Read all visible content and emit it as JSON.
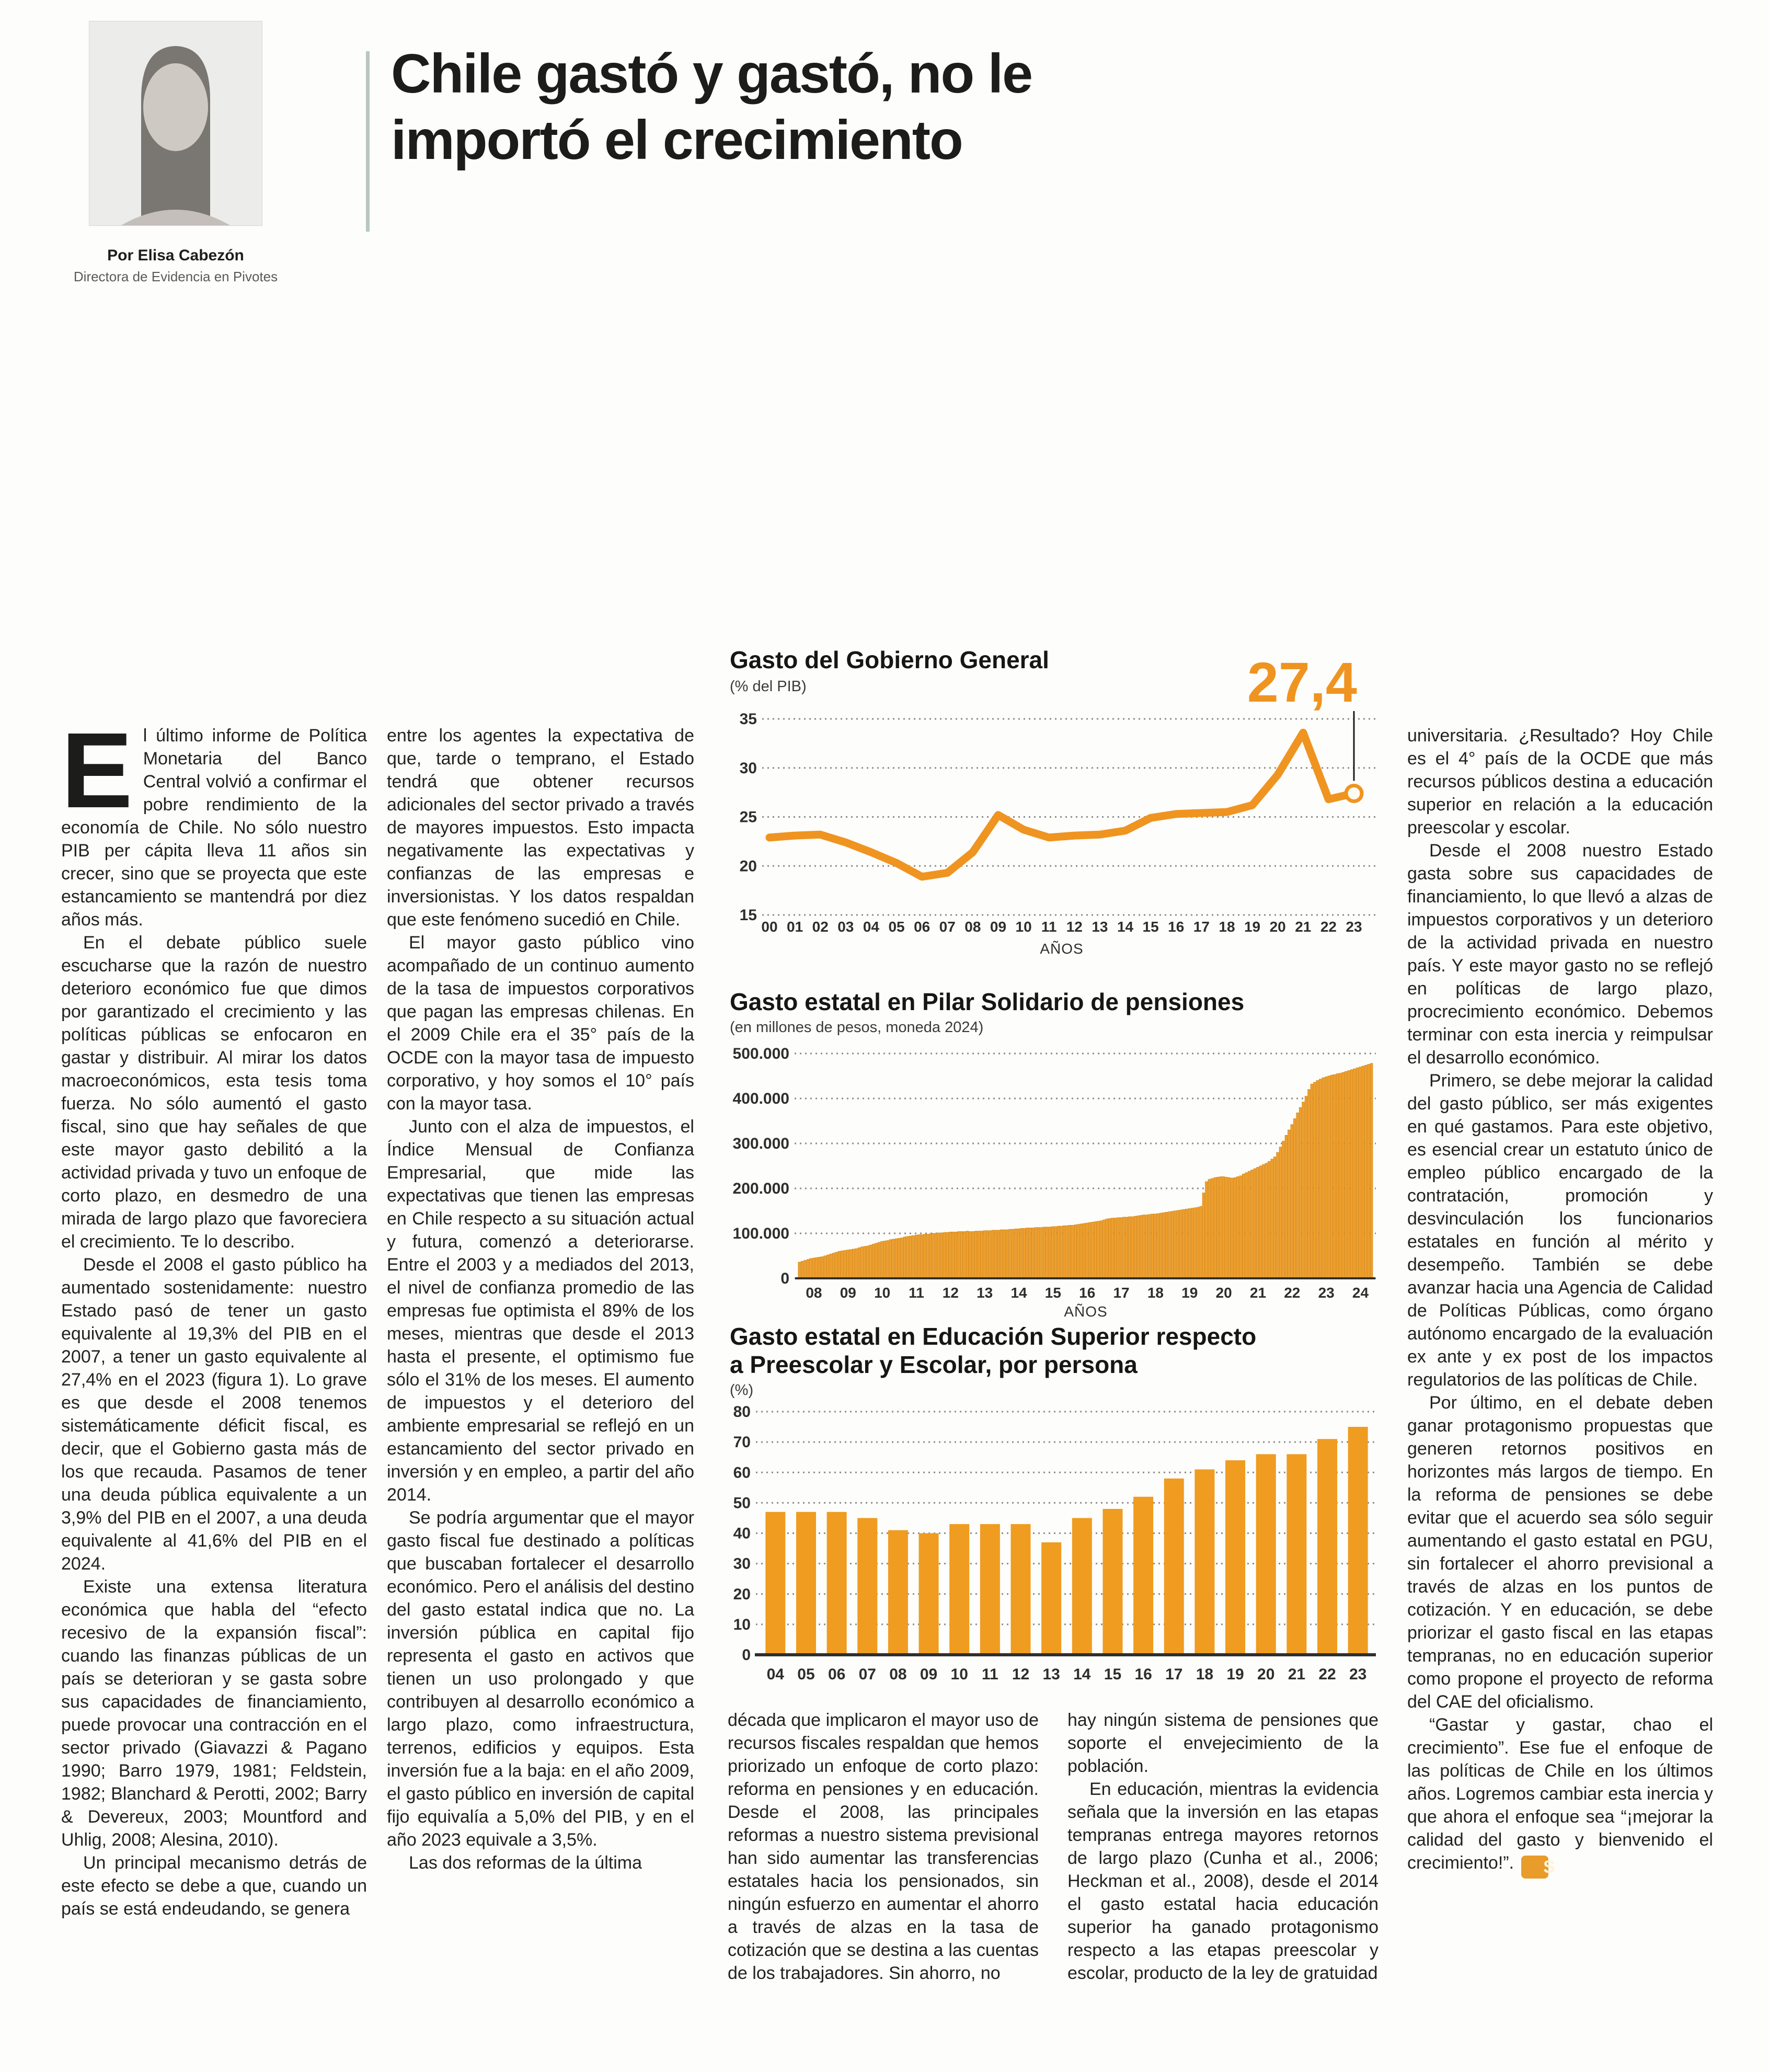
{
  "header": {
    "byline": "Por Elisa Cabezón",
    "byline_role": "Directora de Evidencia en Pivotes",
    "title_lines": [
      "Chile gastó y gastó, no le",
      "importó el crecimiento"
    ]
  },
  "colors": {
    "accent_orange": "#EF9420",
    "bar_fill": "#F0A02F",
    "bar_stroke": "#D88A15",
    "bar_fill_yearly": "#EF9C20",
    "grid": "#8C8C8C",
    "baseline": "#2F2F2D",
    "annotation_line": "#1D1D1B",
    "title_text": "#161614",
    "subtitle_text": "#3A3A38",
    "tick_text": "#2E2E2C",
    "title_rule": "#B9C6C1",
    "end_mark_bg": "#E89C2A"
  },
  "end_mark": "S",
  "columns": {
    "col1": [
      {
        "drop": "E",
        "indent": false,
        "t": "l último informe de Política Monetaria del Banco Central volvió a confirmar el pobre rendimiento de la economía de Chile. No sólo nuestro PIB per cápita lleva 11 años sin crecer, sino que se proyecta que este estancamiento se mantendrá por diez años más."
      },
      {
        "indent": true,
        "t": "En el debate público suele escucharse que la razón de nuestro deterioro económico fue que dimos por garantizado el crecimiento y las políticas públicas se enfocaron en gastar y distribuir. Al mirar los datos macroeconómicos, esta tesis toma fuerza. No sólo aumentó el gasto fiscal, sino que hay señales de que este mayor gasto debilitó a la actividad privada y tuvo un enfoque de corto plazo, en desmedro de una mirada de largo plazo que favoreciera el crecimiento. Te lo describo."
      },
      {
        "indent": true,
        "t": "Desde el 2008 el gasto público ha aumentado sostenidamente: nuestro Estado pasó de tener un gasto equivalente al 19,3% del PIB en el 2007, a tener un gasto equivalente al 27,4% en el 2023 (figura 1). Lo grave es que desde el 2008 tenemos sistemáticamente déficit fiscal, es decir, que el Gobierno gasta más de los que recauda. Pasamos de tener una deuda pública equivalente a un 3,9% del PIB en el 2007, a una deuda equivalente al 41,6% del PIB en el 2024."
      },
      {
        "indent": true,
        "t": "Existe una extensa literatura económica que habla del “efecto recesivo de la expansión fiscal”: cuando las finanzas públicas de un país se deterioran y se gasta sobre sus capacidades de financiamiento, puede provocar una contracción en el sector privado (Giavazzi & Pagano 1990; Barro 1979, 1981; Feldstein, 1982; Blanchard & Perotti, 2002; Barry & Devereux, 2003; Mountford and Uhlig, 2008; Alesina, 2010)."
      },
      {
        "indent": true,
        "t": "Un principal mecanismo detrás de este efecto se debe a que, cuando un país se está endeudando, se genera"
      }
    ],
    "col2": [
      {
        "indent": false,
        "t": "entre los agentes la expectativa de que, tarde o temprano, el Estado tendrá que obtener recursos adicionales del sector privado a través de mayores impuestos. Esto impacta negativamente las expectativas y confianzas de las empresas e inversionistas. Y los datos respaldan que este fenómeno sucedió en Chile."
      },
      {
        "indent": true,
        "t": "El mayor gasto público vino acompañado de un continuo aumento de la tasa de impuestos corporativos que pagan las empresas chilenas. En el 2009 Chile era el 35° país de la OCDE con la mayor tasa de impuesto corporativo, y hoy somos el 10° país con la mayor tasa."
      },
      {
        "indent": true,
        "t": "Junto con el alza de impuestos, el Índice Mensual de Confianza Empresarial, que mide las expectativas que tienen las empresas en Chile respecto a su situación actual y futura, comenzó a deteriorarse. Entre el 2003 y a mediados del 2013, el nivel de confianza promedio de las empresas fue optimista el 89% de los meses, mientras que desde el 2013 hasta el presente, el optimismo fue sólo el 31% de los meses. El aumento de impuestos y el deterioro del ambiente empresarial se reflejó en un estancamiento del sector privado en inversión y en empleo, a partir del año 2014."
      },
      {
        "indent": true,
        "t": "Se podría argumentar que el mayor gasto fiscal fue destinado a políticas que buscaban fortalecer el desarrollo económico. Pero el análisis del destino del gasto estatal indica que no.  La inversión pública en capital fijo representa el gasto en activos que tienen un uso prolongado y que contribuyen al desarrollo económico a largo plazo, como infraestructura, terrenos, edificios y equipos. Esta inversión fue a la baja: en el año 2009, el gasto público en inversión de capital fijo equivalía a 5,0% del PIB, y en el año 2023 equivale a 3,5%."
      },
      {
        "indent": true,
        "t": "Las dos reformas de la última"
      }
    ],
    "col3": [
      {
        "indent": false,
        "t": "década que implicaron el mayor uso de recursos fiscales respaldan que hemos priorizado un enfoque de corto plazo: reforma en pensiones y en educación.  Desde el 2008, las principales reformas a nuestro sistema previsional han sido aumentar las transferencias estatales hacia los pensionados, sin ningún esfuerzo en aumentar el ahorro a través de alzas en la tasa de cotización que se destina a las cuentas de los trabajadores. Sin ahorro, no"
      }
    ],
    "col4": [
      {
        "indent": false,
        "t": "hay ningún sistema de pensiones que soporte el envejecimiento de la población."
      },
      {
        "indent": true,
        "t": "En educación, mientras la evidencia señala que la inversión en las etapas tempranas entrega mayores retornos de largo plazo (Cunha et al., 2006; Heckman et al., 2008), desde el 2014 el gasto estatal hacia educación superior ha ganado protagonismo respecto a las etapas preescolar y escolar, producto de la ley de gratuidad"
      }
    ],
    "col5": [
      {
        "indent": false,
        "t": "universitaria. ¿Resultado? Hoy Chile es el 4° país de la OCDE que más recursos públicos destina a educación superior en relación a la educación preescolar y escolar."
      },
      {
        "indent": true,
        "t": "Desde el 2008 nuestro Estado gasta sobre sus capacidades de financiamiento, lo que llevó a alzas de impuestos corporativos y un deterioro de la actividad privada en nuestro país. Y este mayor gasto no se reflejó en políticas de largo plazo, procrecimiento económico. Debemos terminar con esta inercia y reimpulsar el desarrollo económico."
      },
      {
        "indent": true,
        "t": "Primero, se debe mejorar la calidad del gasto público, ser más exigentes en qué gastamos. Para este objetivo, es esencial crear un estatuto único de empleo público encargado de la contratación, promoción y desvinculación los funcionarios estatales en función al mérito y desempeño. También se debe avanzar hacia una Agencia de Calidad de Políticas Públicas, como órgano autónomo encargado de la evaluación ex ante y ex post de los impactos regulatorios de las políticas de Chile."
      },
      {
        "indent": true,
        "t": "Por último, en el debate deben ganar protagonismo propuestas que generen retornos positivos en horizontes más largos de tiempo. En la reforma de pensiones se debe evitar que el acuerdo sea sólo seguir aumentando el gasto estatal en PGU, sin fortalecer el ahorro previsional a través de alzas en los puntos de cotización. Y en educación, se debe priorizar el gasto fiscal en las etapas tempranas, no en educación superior como propone el proyecto de reforma del CAE del oficialismo."
      },
      {
        "indent": true,
        "end": true,
        "t": "“Gastar y gastar, chao el crecimiento”. Ese fue el enfoque de las políticas de Chile en los últimos años. Logremos cambiar esta inercia y que ahora el enfoque sea “¡mejorar la calidad del gasto y bienvenido el crecimiento!”."
      }
    ]
  },
  "chart_data": [
    {
      "type": "line",
      "title": "Gasto del Gobierno General",
      "subtitle": "(% del PIB)",
      "xlabel": "AÑOS",
      "categories": [
        "00",
        "01",
        "02",
        "03",
        "04",
        "05",
        "06",
        "07",
        "08",
        "09",
        "10",
        "11",
        "12",
        "13",
        "14",
        "15",
        "16",
        "17",
        "18",
        "19",
        "20",
        "21",
        "22",
        "23"
      ],
      "values": [
        22.9,
        23.1,
        23.2,
        22.4,
        21.4,
        20.3,
        18.9,
        19.3,
        21.4,
        25.2,
        23.7,
        22.9,
        23.1,
        23.2,
        23.6,
        24.9,
        25.3,
        25.4,
        25.5,
        26.2,
        29.3,
        33.6,
        26.8,
        27.4
      ],
      "ylim": [
        15,
        35
      ],
      "yticks": [
        15,
        20,
        25,
        30,
        35
      ],
      "grid": "dotted-horizontal",
      "legend": "none",
      "annotation": {
        "label": "27,4",
        "points_to": "last-value",
        "marker": "open-circle"
      }
    },
    {
      "type": "bar",
      "title": "Gasto estatal en Pilar Solidario de pensiones",
      "subtitle": "(en millones de pesos, moneda 2024)",
      "xlabel": "AÑOS",
      "frequency": "monthly",
      "start_year": 2008,
      "x_tick_labels": [
        "08",
        "09",
        "10",
        "11",
        "12",
        "13",
        "14",
        "15",
        "16",
        "17",
        "18",
        "19",
        "20",
        "21",
        "22",
        "23",
        "24"
      ],
      "ylim": [
        0,
        500000
      ],
      "yticks": [
        0,
        100000,
        200000,
        300000,
        400000,
        500000
      ],
      "ytick_labels": [
        "0",
        "100.000",
        "200.000",
        "300.000",
        "400.000",
        "500.000"
      ],
      "grid": "dotted-horizontal",
      "values": [
        36000,
        38000,
        40000,
        42000,
        44000,
        45000,
        46000,
        47000,
        48000,
        50000,
        52000,
        54000,
        56000,
        58000,
        60000,
        61000,
        62000,
        63000,
        64000,
        65000,
        66000,
        68000,
        70000,
        71000,
        72000,
        74000,
        76000,
        78000,
        80000,
        82000,
        83000,
        84000,
        86000,
        87000,
        88000,
        89000,
        90000,
        92000,
        93000,
        94000,
        95000,
        96000,
        97000,
        97000,
        98000,
        98000,
        99000,
        100000,
        100000,
        101000,
        101000,
        102000,
        102000,
        103000,
        103000,
        103000,
        104000,
        104000,
        104000,
        105000,
        104000,
        104000,
        105000,
        105000,
        105000,
        106000,
        106000,
        106000,
        107000,
        107000,
        107000,
        108000,
        108000,
        108000,
        109000,
        109000,
        110000,
        110000,
        111000,
        111000,
        112000,
        112000,
        112000,
        113000,
        113000,
        113000,
        114000,
        114000,
        114000,
        115000,
        115000,
        116000,
        116000,
        117000,
        117000,
        118000,
        118000,
        119000,
        120000,
        121000,
        122000,
        123000,
        124000,
        125000,
        126000,
        127000,
        128000,
        130000,
        132000,
        133000,
        134000,
        134000,
        135000,
        135000,
        136000,
        136000,
        137000,
        137000,
        138000,
        139000,
        140000,
        141000,
        141000,
        142000,
        143000,
        143000,
        144000,
        145000,
        146000,
        147000,
        148000,
        149000,
        150000,
        151000,
        152000,
        153000,
        154000,
        155000,
        156000,
        157000,
        158000,
        160000,
        190000,
        215000,
        220000,
        222000,
        224000,
        225000,
        226000,
        226000,
        225000,
        224000,
        223000,
        224000,
        226000,
        228000,
        232000,
        235000,
        238000,
        241000,
        244000,
        247000,
        250000,
        253000,
        256000,
        260000,
        265000,
        270000,
        280000,
        292000,
        305000,
        318000,
        330000,
        342000,
        355000,
        368000,
        380000,
        392000,
        405000,
        420000,
        432000,
        436000,
        440000,
        443000,
        446000,
        448000,
        450000,
        452000,
        453000,
        455000,
        456000,
        458000,
        460000,
        462000,
        464000,
        466000,
        468000,
        470000,
        472000,
        474000,
        476000,
        478000
      ]
    },
    {
      "type": "bar",
      "title_lines": [
        "Gasto estatal en Educación Superior respecto",
        "a Preescolar y Escolar, por persona"
      ],
      "subtitle": "(%)",
      "xlabel": "",
      "categories": [
        "04",
        "05",
        "06",
        "07",
        "08",
        "09",
        "10",
        "11",
        "12",
        "13",
        "14",
        "15",
        "16",
        "17",
        "18",
        "19",
        "20",
        "21",
        "22",
        "23"
      ],
      "values": [
        47,
        47,
        47,
        45,
        41,
        40,
        43,
        43,
        43,
        37,
        45,
        48,
        52,
        58,
        61,
        64,
        66,
        66,
        71,
        75
      ],
      "ylim": [
        0,
        80
      ],
      "yticks": [
        0,
        10,
        20,
        30,
        40,
        50,
        60,
        70,
        80
      ],
      "grid": "dotted-horizontal"
    }
  ]
}
